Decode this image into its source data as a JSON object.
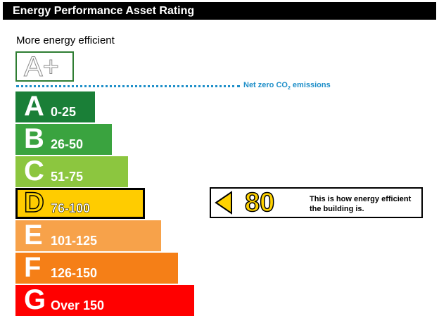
{
  "header": {
    "title": "Energy Performance Asset Rating"
  },
  "scale": {
    "top_label": "More energy efficient",
    "aplus_label": "A+",
    "net_zero_prefix": "Net zero CO",
    "net_zero_sub": "2",
    "net_zero_suffix": " emissions"
  },
  "chart_data": {
    "type": "bar",
    "categories": [
      "A",
      "B",
      "C",
      "D",
      "E",
      "F",
      "G"
    ],
    "ranges": [
      "0-25",
      "26-50",
      "51-75",
      "76-100",
      "101-125",
      "126-150",
      "Over 150"
    ],
    "colors": [
      "#1a7f37",
      "#3aa33f",
      "#8cc63f",
      "#ffcc00",
      "#f7a24a",
      "#f57f17",
      "#ff0000"
    ],
    "current_band": "D",
    "current_rating": 80,
    "rating_label": "80",
    "rating_text": "This is how energy efficient the building is."
  }
}
